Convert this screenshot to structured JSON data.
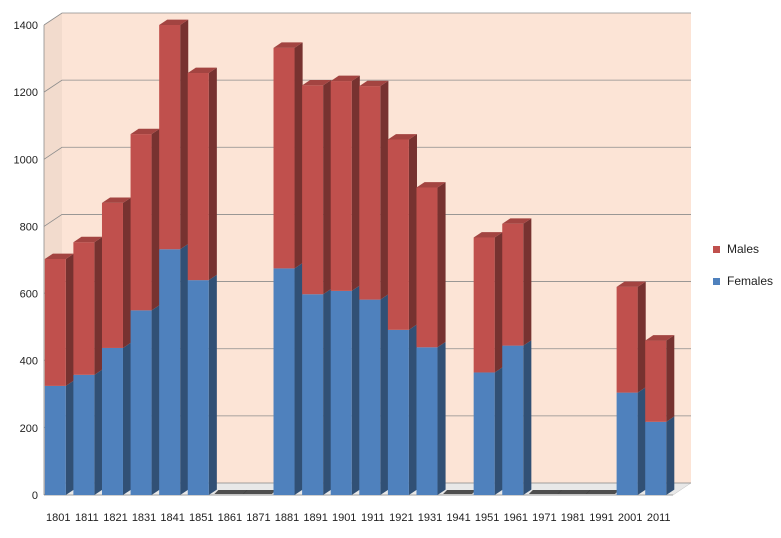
{
  "chart_data": {
    "type": "bar",
    "stacked": true,
    "three_d": true,
    "categories": [
      "1801",
      "1811",
      "1821",
      "1831",
      "1841",
      "1851",
      "1861",
      "1871",
      "1881",
      "1891",
      "1901",
      "1911",
      "1921",
      "1931",
      "1941",
      "1951",
      "1961",
      "1971",
      "1981",
      "1991",
      "2001",
      "2011"
    ],
    "series": [
      {
        "name": "Females",
        "color": "#4f81bd",
        "values": [
          325,
          358,
          438,
          550,
          732,
          640,
          null,
          null,
          675,
          598,
          608,
          582,
          492,
          440,
          null,
          365,
          445,
          null,
          null,
          null,
          305,
          218
        ]
      },
      {
        "name": "Males",
        "color": "#c0504d",
        "values": [
          378,
          395,
          432,
          525,
          668,
          617,
          null,
          null,
          657,
          622,
          625,
          636,
          567,
          476,
          null,
          402,
          363,
          null,
          null,
          null,
          315,
          242
        ]
      }
    ],
    "ylim": [
      0,
      1400
    ],
    "yticks": [
      "0",
      "200",
      "400",
      "600",
      "800",
      "1000",
      "1200",
      "1400"
    ],
    "grid": true,
    "legend": "right",
    "plot_background": "#fce4d6"
  }
}
